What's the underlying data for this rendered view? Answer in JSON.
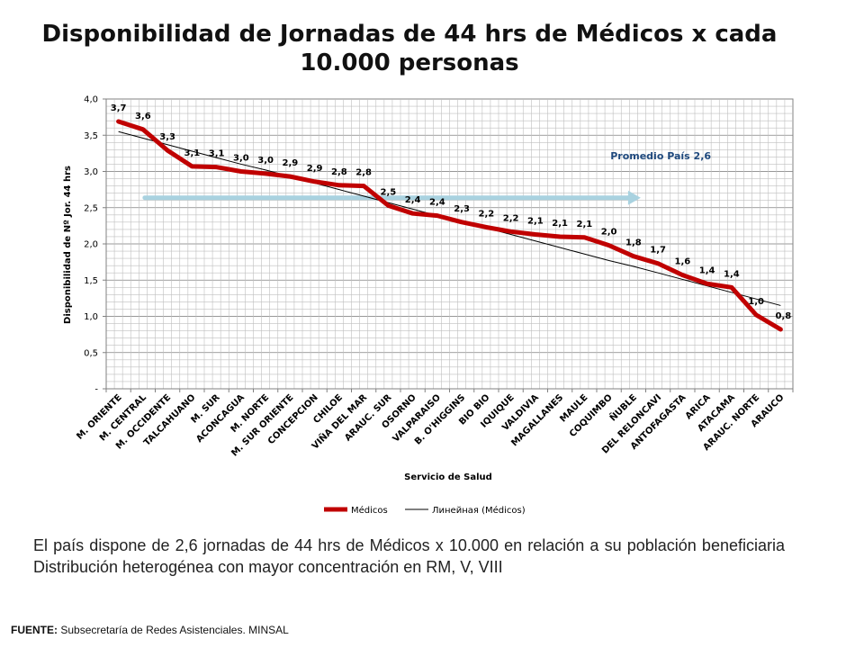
{
  "slide": {
    "title": "Disponibilidad de Jornadas de 44 hrs de Médicos x cada 10.000 personas",
    "caption": "El país dispone de 2,6 jornadas de 44 hrs de Médicos x 10.000 en relación a su población beneficiaria Distribución heterogénea con mayor concentración en RM, V, VIII",
    "source_label": "FUENTE:",
    "source_text": "Subsecretaría de Redes Asistenciales. MINSAL"
  },
  "colors": {
    "series": "#c00000",
    "trend": "#000000",
    "average_arrow": "#a9d2e0",
    "average_label": "#1f497d",
    "grid": "#bfbfbf"
  },
  "chart_data": {
    "type": "line",
    "title": "",
    "xlabel": "Servicio de Salud",
    "ylabel": "Disponibilidad  de Nº Jor. 44 hrs",
    "ylim": [
      0,
      4.0
    ],
    "yticks": [
      "-",
      "0,5",
      "1,0",
      "1,5",
      "2,0",
      "2,5",
      "3,0",
      "3,5",
      "4,0"
    ],
    "categories": [
      "M. ORIENTE",
      "M. CENTRAL",
      "M. OCCIDENTE",
      "TALCAHUANO",
      "M. SUR",
      "ACONCAGUA",
      "M. NORTE",
      "M. SUR ORIENTE",
      "CONCEPCION",
      "CHILOE",
      "VIÑA DEL MAR",
      "ARAUC. SUR",
      "OSORNO",
      "VALPARAISO",
      "B. O'HIGGINS",
      "BIO BIO",
      "IQUIQUE",
      "VALDIVIA",
      "MAGALLANES",
      "MAULE",
      "COQUIMBO",
      "ÑUBLE",
      "DEL RELONCAVI",
      "ANTOFAGASTA",
      "ARICA",
      "ATACAMA",
      "ARAUC. NORTE",
      "ARAUCO"
    ],
    "series": [
      {
        "name": "Médicos",
        "values": [
          3.69,
          3.58,
          3.29,
          3.07,
          3.06,
          3.0,
          2.97,
          2.93,
          2.86,
          2.81,
          2.8,
          2.53,
          2.42,
          2.39,
          2.3,
          2.23,
          2.17,
          2.13,
          2.1,
          2.09,
          1.98,
          1.83,
          1.73,
          1.57,
          1.45,
          1.4,
          1.02,
          0.82
        ],
        "labels": [
          "3,7",
          "3,6",
          "3,3",
          "3,1",
          "3,1",
          "3,0",
          "3,0",
          "2,9",
          "2,9",
          "2,8",
          "2,8",
          "2,5",
          "2,4",
          "2,4",
          "2,3",
          "2,2",
          "2,2",
          "2,1",
          "2,1",
          "2,1",
          "2,0",
          "1,8",
          "1,7",
          "1,6",
          "1,4",
          "1,4",
          "1,0",
          "0,8"
        ]
      },
      {
        "name": "Линейная (Médicos)",
        "values": [
          3.55,
          3.46,
          3.37,
          3.28,
          3.19,
          3.1,
          3.02,
          2.93,
          2.84,
          2.75,
          2.66,
          2.57,
          2.48,
          2.39,
          2.31,
          2.22,
          2.13,
          2.04,
          1.95,
          1.86,
          1.77,
          1.69,
          1.6,
          1.51,
          1.42,
          1.33,
          1.24,
          1.15
        ]
      }
    ],
    "annotation": {
      "text": "Promedio País 2,6",
      "value": 2.6
    },
    "legend": "bottom",
    "grid": true
  }
}
